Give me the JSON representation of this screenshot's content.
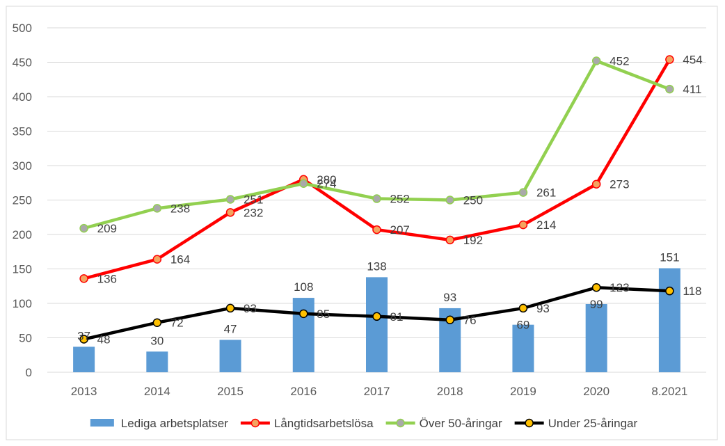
{
  "chart_data": {
    "type": "bar",
    "title": "",
    "xlabel": "",
    "ylabel": "",
    "categories": [
      "2013",
      "2014",
      "2015",
      "2016",
      "2017",
      "2018",
      "2019",
      "2020",
      "8.2021"
    ],
    "ylim": [
      0,
      500
    ],
    "yticks": [
      "0",
      "50",
      "100",
      "150",
      "200",
      "250",
      "300",
      "350",
      "400",
      "450",
      "500"
    ],
    "grid": true,
    "legend_position": "bottom",
    "series": [
      {
        "name": "Lediga arbetsplatser",
        "kind": "bar",
        "color": "#5b9bd5",
        "values": [
          37,
          30,
          47,
          108,
          138,
          93,
          69,
          99,
          151
        ],
        "labels": [
          "37",
          "30",
          "47",
          "108",
          "138",
          "93",
          "",
          "",
          "151"
        ]
      },
      {
        "name": "Långtidsarbetslösa",
        "kind": "line",
        "color": "#ff0000",
        "marker_fill": "#f4a460",
        "values": [
          136,
          164,
          232,
          280,
          207,
          192,
          214,
          273,
          454
        ],
        "labels": [
          "136",
          "164",
          "232",
          "280",
          "207",
          "192",
          "214",
          "273",
          "454"
        ]
      },
      {
        "name": "Över 50-åringar",
        "kind": "line",
        "color": "#92d050",
        "marker_fill": "#a9a9a9",
        "values": [
          209,
          238,
          251,
          274,
          252,
          250,
          261,
          452,
          411
        ],
        "labels": [
          "209",
          "238",
          "251",
          "274",
          "252",
          "250",
          "261",
          "452",
          "411"
        ]
      },
      {
        "name": "Under 25-åringar",
        "kind": "line",
        "color": "#000000",
        "marker_fill": "#ffc000",
        "values": [
          48,
          72,
          93,
          85,
          81,
          76,
          93,
          123,
          118
        ],
        "labels": [
          "48",
          "72",
          "93",
          "85",
          "81",
          "76",
          "93",
          "123",
          "118"
        ]
      }
    ],
    "extra_labels": [
      {
        "series": 0,
        "index": 6,
        "text": "69"
      },
      {
        "series": 0,
        "index": 7,
        "text": "99"
      }
    ]
  }
}
